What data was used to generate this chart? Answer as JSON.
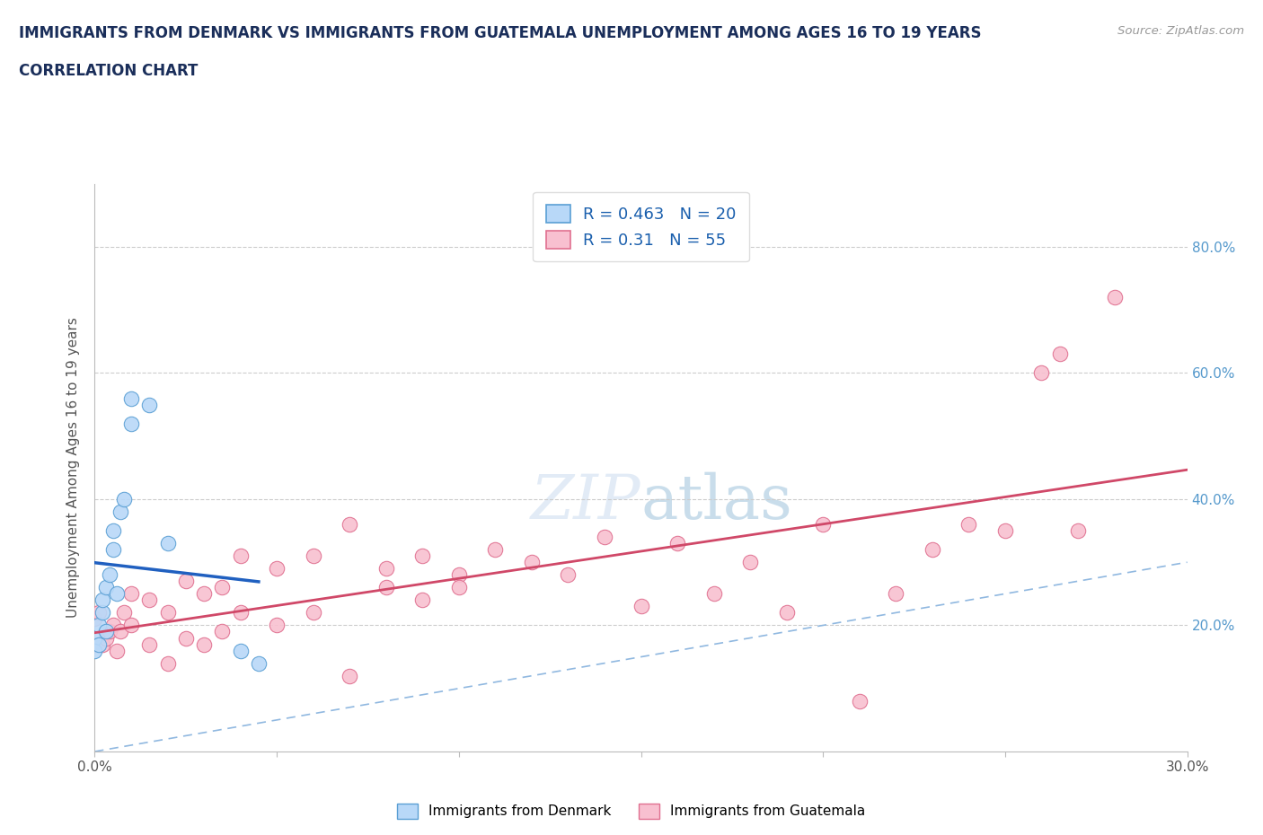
{
  "title_line1": "IMMIGRANTS FROM DENMARK VS IMMIGRANTS FROM GUATEMALA UNEMPLOYMENT AMONG AGES 16 TO 19 YEARS",
  "title_line2": "CORRELATION CHART",
  "source_text": "Source: ZipAtlas.com",
  "ylabel": "Unemployment Among Ages 16 to 19 years",
  "xlim": [
    0.0,
    30.0
  ],
  "ylim": [
    0.0,
    90.0
  ],
  "xticks": [
    0.0,
    5.0,
    10.0,
    15.0,
    20.0,
    25.0,
    30.0
  ],
  "xticklabels": [
    "0.0%",
    "",
    "",
    "",
    "",
    "",
    "30.0%"
  ],
  "ytick_positions": [
    0.0,
    20.0,
    40.0,
    60.0,
    80.0
  ],
  "yticklabels_right": [
    "",
    "20.0%",
    "40.0%",
    "60.0%",
    "80.0%"
  ],
  "denmark_fill": "#b8d8f8",
  "denmark_edge": "#5a9fd4",
  "guatemala_fill": "#f8c0d0",
  "guatemala_edge": "#e07090",
  "denmark_R": 0.463,
  "denmark_N": 20,
  "guatemala_R": 0.31,
  "guatemala_N": 55,
  "denmark_line_color": "#2060c0",
  "guatemala_line_color": "#d04868",
  "diagonal_color": "#90b8e0",
  "legend_color": "#1a5fad",
  "background_color": "#ffffff",
  "grid_color": "#cccccc",
  "title_color": "#1a2e5a",
  "right_axis_color": "#5599cc",
  "denmark_x": [
    0.0,
    0.0,
    0.1,
    0.1,
    0.2,
    0.2,
    0.3,
    0.3,
    0.4,
    0.5,
    0.5,
    0.6,
    0.7,
    0.8,
    1.0,
    1.0,
    1.5,
    2.0,
    4.0,
    4.5
  ],
  "denmark_y": [
    18.0,
    16.0,
    17.0,
    20.0,
    22.0,
    24.0,
    19.0,
    26.0,
    28.0,
    32.0,
    35.0,
    25.0,
    38.0,
    40.0,
    52.0,
    56.0,
    55.0,
    33.0,
    16.0,
    14.0
  ],
  "guatemala_x": [
    0.0,
    0.0,
    0.1,
    0.2,
    0.3,
    0.4,
    0.5,
    0.6,
    0.7,
    0.8,
    1.0,
    1.0,
    1.5,
    1.5,
    2.0,
    2.0,
    2.5,
    2.5,
    3.0,
    3.0,
    3.5,
    3.5,
    4.0,
    4.0,
    5.0,
    5.0,
    6.0,
    6.0,
    7.0,
    7.0,
    8.0,
    8.0,
    9.0,
    9.0,
    10.0,
    10.0,
    11.0,
    12.0,
    13.0,
    14.0,
    15.0,
    16.0,
    17.0,
    18.0,
    19.0,
    20.0,
    21.0,
    22.0,
    23.0,
    24.0,
    25.0,
    26.0,
    26.5,
    27.0,
    28.0
  ],
  "guatemala_y": [
    17.0,
    21.0,
    22.0,
    17.0,
    18.0,
    19.0,
    20.0,
    16.0,
    19.0,
    22.0,
    20.0,
    25.0,
    17.0,
    24.0,
    14.0,
    22.0,
    18.0,
    27.0,
    17.0,
    25.0,
    19.0,
    26.0,
    22.0,
    31.0,
    20.0,
    29.0,
    22.0,
    31.0,
    36.0,
    12.0,
    26.0,
    29.0,
    24.0,
    31.0,
    28.0,
    26.0,
    32.0,
    30.0,
    28.0,
    34.0,
    23.0,
    33.0,
    25.0,
    30.0,
    22.0,
    36.0,
    8.0,
    25.0,
    32.0,
    36.0,
    35.0,
    60.0,
    63.0,
    35.0,
    72.0
  ]
}
